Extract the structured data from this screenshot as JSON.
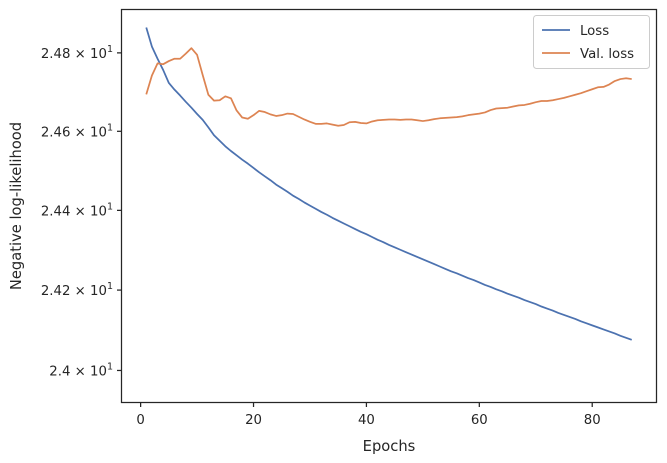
{
  "chart_data": {
    "type": "line",
    "title": "",
    "xlabel": "Epochs",
    "ylabel": "Negative log-likelihood",
    "y_scale": "log",
    "xlim": [
      -3.3,
      91.3
    ],
    "ylim": [
      23.922,
      24.91
    ],
    "grid": false,
    "legend_position": "top-right",
    "x_ticks": [
      {
        "value": 0,
        "label": "0"
      },
      {
        "value": 20,
        "label": "20"
      },
      {
        "value": 40,
        "label": "40"
      },
      {
        "value": 60,
        "label": "60"
      },
      {
        "value": 80,
        "label": "80"
      }
    ],
    "y_ticks": [
      {
        "value": 24.0,
        "base": "2.4 × 10",
        "exp": "1"
      },
      {
        "value": 24.2,
        "base": "2.42 × 10",
        "exp": "1"
      },
      {
        "value": 24.4,
        "base": "2.44 × 10",
        "exp": "1"
      },
      {
        "value": 24.6,
        "base": "2.46 × 10",
        "exp": "1"
      },
      {
        "value": 24.8,
        "base": "2.48 × 10",
        "exp": "1"
      }
    ],
    "series": [
      {
        "name": "Loss",
        "color": "#4c72b0",
        "x": [
          1,
          2,
          3,
          4,
          5,
          6,
          7,
          8,
          9,
          10,
          11,
          12,
          13,
          14,
          15,
          16,
          17,
          18,
          19,
          20,
          21,
          22,
          23,
          24,
          25,
          26,
          27,
          28,
          29,
          30,
          31,
          32,
          33,
          34,
          35,
          36,
          37,
          38,
          39,
          40,
          41,
          42,
          43,
          44,
          45,
          46,
          47,
          48,
          49,
          50,
          51,
          52,
          53,
          54,
          55,
          56,
          57,
          58,
          59,
          60,
          61,
          62,
          63,
          64,
          65,
          66,
          67,
          68,
          69,
          70,
          71,
          72,
          73,
          74,
          75,
          76,
          77,
          78,
          79,
          80,
          81,
          82,
          83,
          84,
          85,
          86,
          87
        ],
        "values": [
          24.865,
          24.816,
          24.785,
          24.756,
          24.723,
          24.706,
          24.691,
          24.675,
          24.66,
          24.644,
          24.629,
          24.61,
          24.59,
          24.576,
          24.562,
          24.55,
          24.539,
          24.528,
          24.518,
          24.507,
          24.496,
          24.486,
          24.476,
          24.465,
          24.456,
          24.447,
          24.437,
          24.429,
          24.42,
          24.412,
          24.404,
          24.396,
          24.389,
          24.381,
          24.374,
          24.367,
          24.36,
          24.353,
          24.346,
          24.34,
          24.333,
          24.326,
          24.32,
          24.313,
          24.307,
          24.301,
          24.295,
          24.289,
          24.283,
          24.277,
          24.271,
          24.265,
          24.259,
          24.253,
          24.247,
          24.242,
          24.236,
          24.23,
          24.225,
          24.219,
          24.213,
          24.208,
          24.202,
          24.197,
          24.191,
          24.186,
          24.181,
          24.175,
          24.17,
          24.165,
          24.159,
          24.154,
          24.149,
          24.143,
          24.138,
          24.133,
          24.128,
          24.122,
          24.117,
          24.112,
          24.107,
          24.102,
          24.097,
          24.092,
          24.086,
          24.081,
          24.076
        ]
      },
      {
        "name": "Val. loss",
        "color": "#dd8452",
        "x": [
          1,
          2,
          3,
          4,
          5,
          6,
          7,
          8,
          9,
          10,
          11,
          12,
          13,
          14,
          15,
          16,
          17,
          18,
          19,
          20,
          21,
          22,
          23,
          24,
          25,
          26,
          27,
          28,
          29,
          30,
          31,
          32,
          33,
          34,
          35,
          36,
          37,
          38,
          39,
          40,
          41,
          42,
          43,
          44,
          45,
          46,
          47,
          48,
          49,
          50,
          51,
          52,
          53,
          54,
          55,
          56,
          57,
          58,
          59,
          60,
          61,
          62,
          63,
          64,
          65,
          66,
          67,
          68,
          69,
          70,
          71,
          72,
          73,
          74,
          75,
          76,
          77,
          78,
          79,
          80,
          81,
          82,
          83,
          84,
          85,
          86,
          87
        ],
        "values": [
          24.694,
          24.742,
          24.773,
          24.771,
          24.779,
          24.785,
          24.785,
          24.798,
          24.812,
          24.795,
          24.743,
          24.693,
          24.678,
          24.679,
          24.689,
          24.684,
          24.653,
          24.635,
          24.632,
          24.641,
          24.652,
          24.649,
          24.643,
          24.639,
          24.641,
          24.645,
          24.644,
          24.637,
          24.63,
          24.624,
          24.619,
          24.619,
          24.62,
          24.617,
          24.614,
          24.616,
          24.623,
          24.624,
          24.621,
          24.62,
          24.625,
          24.628,
          24.629,
          24.63,
          24.63,
          24.629,
          24.63,
          24.63,
          24.628,
          24.626,
          24.628,
          24.631,
          24.633,
          24.634,
          24.635,
          24.636,
          24.638,
          24.641,
          24.643,
          24.645,
          24.648,
          24.654,
          24.658,
          24.659,
          24.66,
          24.663,
          24.666,
          24.667,
          24.67,
          24.674,
          24.677,
          24.677,
          24.679,
          24.682,
          24.685,
          24.689,
          24.693,
          24.697,
          24.702,
          24.707,
          24.712,
          24.713,
          24.719,
          24.728,
          24.733,
          24.735,
          24.733
        ]
      }
    ]
  }
}
